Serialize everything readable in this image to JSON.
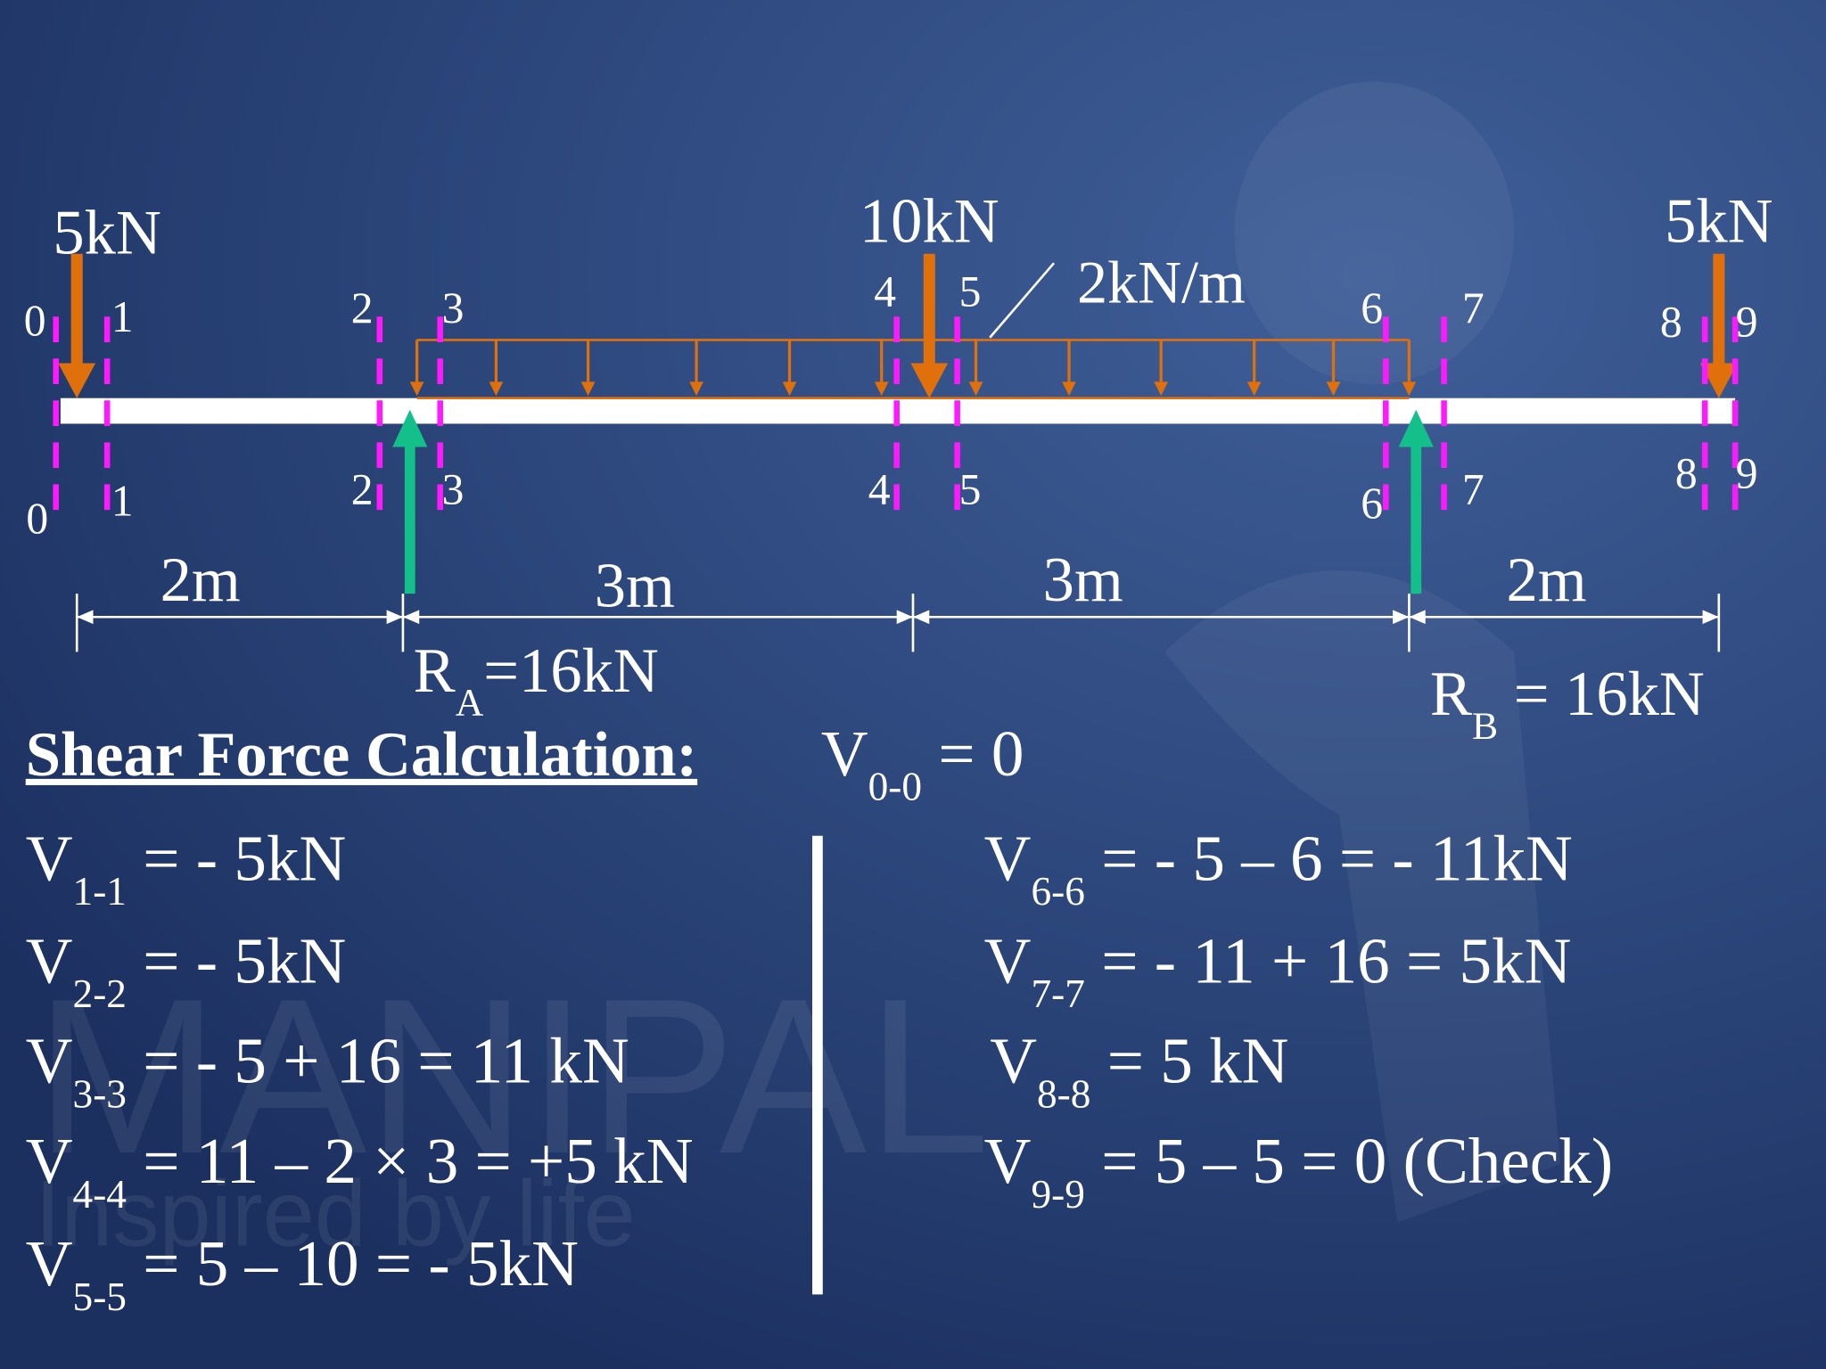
{
  "watermark": {
    "name": "MANIPAL",
    "tagline": "Inspired by life"
  },
  "loads": {
    "left": "5kN",
    "middle": "10kN",
    "udl": "2kN/m",
    "right": "5kN"
  },
  "section_labels": [
    "0",
    "1",
    "2",
    "3",
    "4",
    "5",
    "6",
    "7",
    "8",
    "9"
  ],
  "spans": [
    "2m",
    "3m",
    "3m",
    "2m"
  ],
  "reactions": [
    {
      "symbol": "R",
      "sub": "A",
      "rhs": "=16kN"
    },
    {
      "symbol": "R",
      "sub": "B",
      "rhs": " = 16kN"
    }
  ],
  "heading": "Shear Force Calculation:",
  "equations": [
    {
      "symbol": "V",
      "sub": "0-0",
      "rhs": " = 0"
    },
    {
      "symbol": "V",
      "sub": "1-1",
      "rhs": " = - 5kN"
    },
    {
      "symbol": "V",
      "sub": "2-2",
      "rhs": " = - 5kN"
    },
    {
      "symbol": "V",
      "sub": "3-3",
      "rhs": " = - 5  + 16 = 11 kN"
    },
    {
      "symbol": "V",
      "sub": "4-4",
      "rhs": " = 11 – 2 × 3 = +5 kN"
    },
    {
      "symbol": "V",
      "sub": "5-5",
      "rhs": " = 5 – 10 = - 5kN"
    },
    {
      "symbol": "V",
      "sub": "6-6",
      "rhs": " = - 5 – 6 = - 11kN"
    },
    {
      "symbol": "V",
      "sub": "7-7",
      "rhs": " = - 11 + 16 = 5kN"
    },
    {
      "symbol": "V",
      "sub": "8-8",
      "rhs": " = 5 kN"
    },
    {
      "symbol": "V",
      "sub": "9-9",
      "rhs": " = 5 – 5 = 0 (Check)"
    }
  ]
}
